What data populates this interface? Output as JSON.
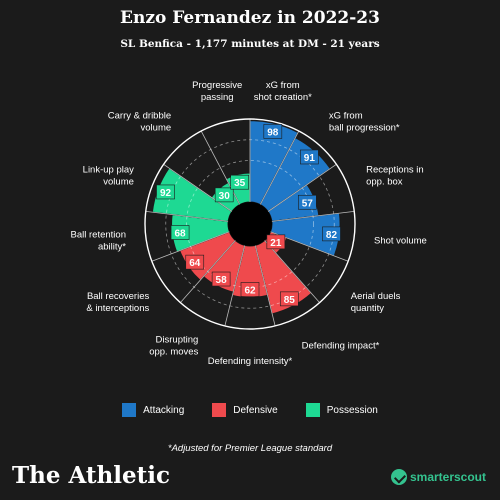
{
  "header": {
    "title": "Enzo Fernandez in 2022-23",
    "subtitle": "SL Benfica - 1,177 minutes at DM - 21 years"
  },
  "chart_data": {
    "type": "polar-bar",
    "title": "Enzo Fernandez in 2022-23",
    "subtitle": "SL Benfica - 1,177 minutes at DM - 21 years",
    "rlim": [
      0,
      100
    ],
    "categories": [
      {
        "label": "xG from shot creation*",
        "value": 98,
        "group": "Attacking"
      },
      {
        "label": "xG from ball progression*",
        "value": 91,
        "group": "Attacking"
      },
      {
        "label": "Receptions in opp. box",
        "value": 57,
        "group": "Attacking"
      },
      {
        "label": "Shot volume",
        "value": 82,
        "group": "Attacking"
      },
      {
        "label": "Aerial duels quantity",
        "value": 21,
        "group": "Defensive"
      },
      {
        "label": "Defending impact*",
        "value": 85,
        "group": "Defensive"
      },
      {
        "label": "Defending intensity*",
        "value": 62,
        "group": "Defensive"
      },
      {
        "label": "Disrupting opp. moves",
        "value": 58,
        "group": "Defensive"
      },
      {
        "label": "Ball recoveries & interceptions",
        "value": 64,
        "group": "Defensive"
      },
      {
        "label": "Ball retention ability*",
        "value": 68,
        "group": "Possession"
      },
      {
        "label": "Link-up play volume",
        "value": 92,
        "group": "Possession"
      },
      {
        "label": "Carry & dribble volume",
        "value": 30,
        "group": "Possession"
      },
      {
        "label": "Progressive passing",
        "value": 35,
        "group": "Possession"
      }
    ],
    "groups": [
      {
        "name": "Attacking",
        "color": "#1f78c8"
      },
      {
        "name": "Defensive",
        "color": "#ef4a4d"
      },
      {
        "name": "Possession",
        "color": "#1ed993"
      }
    ]
  },
  "axis_label_lines": [
    [
      "xG from",
      "shot creation*"
    ],
    [
      "xG from",
      "ball progression*"
    ],
    [
      "Receptions in",
      "opp. box"
    ],
    [
      "Shot volume"
    ],
    [
      "Aerial duels",
      "quantity"
    ],
    [
      "Defending impact*"
    ],
    [
      "Defending intensity*"
    ],
    [
      "Disrupting",
      "opp. moves"
    ],
    [
      "Ball recoveries",
      "& interceptions"
    ],
    [
      "Ball retention",
      "ability*"
    ],
    [
      "Link-up play",
      "volume"
    ],
    [
      "Carry & dribble",
      "volume"
    ],
    [
      "Progressive",
      "passing"
    ]
  ],
  "legend": [
    {
      "label": "Attacking",
      "color": "#1f78c8"
    },
    {
      "label": "Defensive",
      "color": "#ef4a4d"
    },
    {
      "label": "Possession",
      "color": "#1ed993"
    }
  ],
  "footnote": "*Adjusted for Premier League standard",
  "brand": {
    "left": "The Athletic",
    "right": "smarterscout"
  }
}
